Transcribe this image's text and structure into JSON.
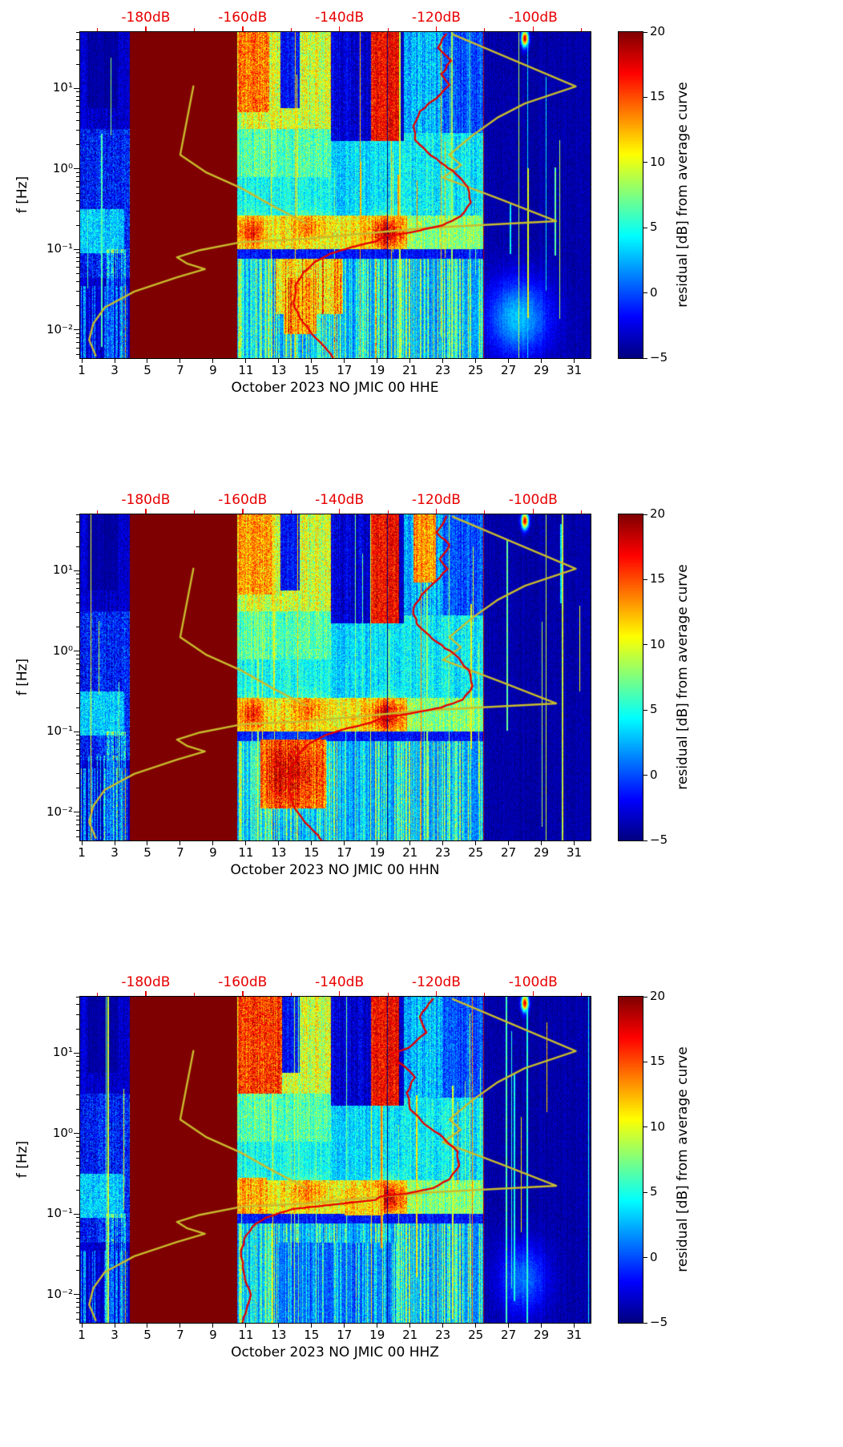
{
  "page": {
    "background": "#ffffff"
  },
  "chart_shared": {
    "clim": [
      -5,
      20
    ],
    "masked_interval_days": [
      3.95,
      10.45
    ],
    "x_axis": {
      "range_days": [
        0.9,
        32.0
      ],
      "ticks": [
        1,
        3,
        5,
        7,
        9,
        11,
        13,
        15,
        17,
        19,
        21,
        23,
        25,
        27,
        29,
        31
      ],
      "tick_labels": [
        "1",
        "3",
        "5",
        "7",
        "9",
        "11",
        "13",
        "15",
        "17",
        "19",
        "21",
        "23",
        "25",
        "27",
        "29",
        "31"
      ]
    },
    "y_axis": {
      "label": "f [Hz]",
      "log10_range": [
        -2.35,
        1.7
      ],
      "ticks": [
        10,
        1,
        0.1,
        0.01
      ],
      "tick_labels": [
        "10¹",
        "10⁰",
        "10⁻¹",
        "10⁻²"
      ]
    },
    "top_axis": {
      "color": "#e80000",
      "ticks_db": [
        -180,
        -160,
        -140,
        -120,
        -100
      ],
      "tick_labels": [
        "-180dB",
        "-160dB",
        "-140dB",
        "-120dB",
        "-100dB"
      ],
      "tick_days": [
        4.9,
        10.8,
        16.7,
        22.6,
        28.5
      ]
    },
    "colorbar": {
      "label": "residual [dB] from average curve",
      "range": [
        -5,
        20
      ],
      "colormap": "jet",
      "ticks": [
        20,
        15,
        10,
        5,
        0,
        -5
      ],
      "tick_labels": [
        "20",
        "15",
        "10",
        "5",
        "0",
        "−5"
      ]
    },
    "curves": {
      "yellow_color": "#c9bc2e",
      "red_color": "#e60000",
      "yellow_main_day_freq": [
        [
          23.6,
          47
        ],
        [
          31.1,
          10.6
        ],
        [
          28.0,
          6.5
        ],
        [
          26.3,
          4.3
        ],
        [
          24.8,
          2.6
        ],
        [
          23.4,
          1.5
        ],
        [
          24.1,
          1.12
        ],
        [
          23.0,
          0.78
        ],
        [
          26.5,
          0.42
        ],
        [
          29.9,
          0.225
        ],
        [
          22.0,
          0.185
        ],
        [
          14.6,
          0.135
        ],
        [
          10.8,
          0.124
        ],
        [
          8.2,
          0.098
        ],
        [
          6.8,
          0.08
        ],
        [
          7.4,
          0.067
        ],
        [
          8.5,
          0.057
        ],
        [
          6.8,
          0.045
        ],
        [
          4.2,
          0.03
        ],
        [
          2.4,
          0.019
        ],
        [
          1.7,
          0.012
        ],
        [
          1.45,
          0.0075
        ],
        [
          1.85,
          0.0048
        ]
      ],
      "yellow_left_day_freq": [
        [
          7.8,
          10.6
        ],
        [
          7.0,
          1.5
        ],
        [
          8.6,
          0.9
        ],
        [
          10.7,
          0.58
        ],
        [
          12.6,
          0.35
        ],
        [
          14.7,
          0.21
        ]
      ]
    },
    "heatmap_ops_pre": [
      {
        "t": "rect",
        "d": [
          0.9,
          32
        ],
        "l": [
          -2.35,
          1.7
        ],
        "v": -3.3,
        "n": 1.6,
        "cn": 0.8
      },
      {
        "t": "rect",
        "d": [
          0.9,
          3.95
        ],
        "l": [
          -1.35,
          0.5
        ],
        "v": -1.2,
        "n": 3.0,
        "cn": 1.2
      },
      {
        "t": "rect",
        "d": [
          0.9,
          3.6
        ],
        "l": [
          -1.05,
          -0.5
        ],
        "v": 3.2,
        "n": 2.6,
        "cn": 1.0
      },
      {
        "t": "rect",
        "d": [
          1.4,
          3.2
        ],
        "l": [
          0.75,
          1.7
        ],
        "v": -4.2,
        "n": 0.9,
        "cn": 0.6
      },
      {
        "t": "stripes",
        "d": [
          0.9,
          3.9
        ],
        "l": [
          -2.35,
          -1.45
        ],
        "amp": 8,
        "p": 0.3
      },
      {
        "t": "stripes",
        "d": [
          2.5,
          3.8
        ],
        "l": [
          -2.35,
          -1.0
        ],
        "amp": 9,
        "p": 0.45
      },
      {
        "t": "lines",
        "d": [
          1.0,
          3.8
        ],
        "count": 3,
        "v": [
          5,
          11
        ]
      },
      {
        "t": "rect",
        "d": [
          10.45,
          16.2
        ],
        "l": [
          0.5,
          1.7
        ],
        "v": 9.5,
        "n": 3.2,
        "cn": 2.2
      },
      {
        "t": "rect",
        "d": [
          10.45,
          16.2
        ],
        "l": [
          -0.1,
          0.5
        ],
        "v": 6.5,
        "n": 2.6,
        "cn": 1.8
      },
      {
        "t": "rect",
        "d": [
          10.45,
          16.2
        ],
        "l": [
          -0.58,
          -0.1
        ],
        "v": 4.6,
        "n": 2.2,
        "cn": 1.5
      },
      {
        "t": "rect",
        "d": [
          13.1,
          14.3
        ],
        "l": [
          0.75,
          1.7
        ],
        "v": -1.5,
        "n": 2.2,
        "cn": 1.0
      },
      {
        "t": "rect",
        "d": [
          16.2,
          18.6
        ],
        "l": [
          0.35,
          1.7
        ],
        "v": -2.8,
        "n": 2.0,
        "cn": 1.0
      },
      {
        "t": "rect",
        "d": [
          16.2,
          20.6
        ],
        "l": [
          -0.58,
          0.35
        ],
        "v": 3.8,
        "n": 2.2,
        "cn": 1.5
      },
      {
        "t": "rect",
        "d": [
          18.6,
          20.35
        ],
        "l": [
          0.35,
          1.7
        ],
        "v": 17,
        "n": 2.6,
        "cn": 1.2
      },
      {
        "t": "rect",
        "d": [
          20.6,
          23.0
        ],
        "l": [
          0.45,
          1.7
        ],
        "v": 2.5,
        "n": 2.6,
        "cn": 1.8
      },
      {
        "t": "rect",
        "d": [
          23.0,
          25.45
        ],
        "l": [
          0.45,
          1.7
        ],
        "v": 0.0,
        "n": 2.2,
        "cn": 1.4
      },
      {
        "t": "rect",
        "d": [
          20.6,
          25.45
        ],
        "l": [
          -0.58,
          0.45
        ],
        "v": 4.2,
        "n": 2.4,
        "cn": 1.5
      },
      {
        "t": "rect",
        "d": [
          10.45,
          25.45
        ],
        "l": [
          -1.0,
          -0.58
        ],
        "v": 10.5,
        "n": 3.0,
        "cn": 1.8
      },
      {
        "t": "rect",
        "d": [
          20.8,
          25.45
        ],
        "l": [
          -1.0,
          -0.58
        ],
        "v": 7.5,
        "n": 2.6,
        "cn": 1.8
      },
      {
        "t": "blob",
        "d": 11.4,
        "l": -0.78,
        "rd": 0.5,
        "rl": 0.13,
        "v": 6
      },
      {
        "t": "blob",
        "d": 19.6,
        "l": -0.8,
        "rd": 0.7,
        "rl": 0.14,
        "v": 8
      },
      {
        "t": "blob",
        "d": 14.9,
        "l": -0.72,
        "rd": 0.7,
        "rl": 0.12,
        "v": 3.5
      },
      {
        "t": "rect",
        "d": [
          10.45,
          25.45
        ],
        "l": [
          -1.12,
          -1.0
        ],
        "v": -1.5,
        "n": 1.8,
        "cn": 1.0
      },
      {
        "t": "rect",
        "d": [
          10.45,
          25.45
        ],
        "l": [
          -2.35,
          -1.12
        ],
        "v": 1.8,
        "n": 1.8,
        "cn": 1.2
      },
      {
        "t": "stripes",
        "d": [
          10.45,
          25.45
        ],
        "l": [
          -2.35,
          -1.12
        ],
        "amp": 9,
        "p": 0.4
      },
      {
        "t": "lines",
        "d": [
          10.6,
          25.3
        ],
        "count": 18,
        "v": [
          6,
          14
        ]
      },
      {
        "t": "rect",
        "d": [
          25.5,
          32.0
        ],
        "l": [
          -2.35,
          1.7
        ],
        "v": -4.0,
        "n": 1.0,
        "cn": 0.5
      },
      {
        "t": "lines",
        "d": [
          25.7,
          31.9
        ],
        "count": 7,
        "v": [
          3,
          12
        ]
      }
    ],
    "heatmap_ops_post": [
      {
        "t": "vline",
        "day": 19.62,
        "l": [
          -2.35,
          1.7
        ],
        "v": -5,
        "w": 1
      },
      {
        "t": "vline",
        "day": 25.5,
        "l": [
          -2.35,
          1.7
        ],
        "v": 19,
        "w": 1
      },
      {
        "t": "blob",
        "d": 28.0,
        "l": 1.62,
        "rd": 0.15,
        "rl": 0.07,
        "v": 22
      },
      {
        "t": "rect",
        "d": [
          3.95,
          10.45
        ],
        "l": [
          -2.35,
          1.7
        ],
        "v": 26,
        "n": 0,
        "cn": 0
      }
    ]
  },
  "chart_data": [
    {
      "type": "heatmap",
      "channel": "HHE",
      "xlabel": "October 2023 NO JMIC 00 HHE",
      "seed": 101,
      "red_curve_day_freq": [
        [
          23.2,
          47
        ],
        [
          22.7,
          32
        ],
        [
          23.5,
          22
        ],
        [
          22.9,
          15
        ],
        [
          23.4,
          11
        ],
        [
          22.6,
          7.5
        ],
        [
          21.6,
          5.2
        ],
        [
          21.2,
          3.4
        ],
        [
          21.3,
          2.3
        ],
        [
          22.3,
          1.45
        ],
        [
          23.6,
          0.95
        ],
        [
          24.5,
          0.6
        ],
        [
          24.7,
          0.38
        ],
        [
          24.1,
          0.26
        ],
        [
          23.0,
          0.2
        ],
        [
          21.2,
          0.165
        ],
        [
          19.6,
          0.148
        ],
        [
          18.9,
          0.125
        ],
        [
          17.3,
          0.105
        ],
        [
          16.1,
          0.088
        ],
        [
          15.2,
          0.07
        ],
        [
          14.5,
          0.052
        ],
        [
          14.0,
          0.035
        ],
        [
          13.9,
          0.022
        ],
        [
          14.3,
          0.014
        ],
        [
          15.1,
          0.0085
        ],
        [
          16.0,
          0.0055
        ],
        [
          16.3,
          0.0045
        ]
      ],
      "heatmap_ops_extra": [
        {
          "t": "rect",
          "d": [
            10.5,
            12.4
          ],
          "l": [
            0.7,
            1.7
          ],
          "v": 14,
          "n": 3.2,
          "cn": 1.5
        },
        {
          "t": "rect",
          "d": [
            12.8,
            16.9
          ],
          "l": [
            -1.8,
            -1.12
          ],
          "v": 10.5,
          "n": 3.2,
          "cn": 2.0
        },
        {
          "t": "rect",
          "d": [
            13.3,
            15.3
          ],
          "l": [
            -2.05,
            -1.35
          ],
          "v": 12.5,
          "n": 3.0,
          "cn": 2.0
        },
        {
          "t": "blob",
          "d": 27.6,
          "l": -1.85,
          "rd": 1.3,
          "rl": 0.33,
          "v": 7
        },
        {
          "t": "stripes",
          "d": [
            10.5,
            19.5
          ],
          "l": [
            -2.35,
            -1.12
          ],
          "amp": 6,
          "p": 0.3
        }
      ]
    },
    {
      "type": "heatmap",
      "channel": "HHN",
      "xlabel": "October 2023 NO JMIC 00 HHN",
      "seed": 202,
      "red_curve_day_freq": [
        [
          23.2,
          47
        ],
        [
          22.6,
          30
        ],
        [
          23.4,
          21
        ],
        [
          22.8,
          14
        ],
        [
          23.3,
          10.5
        ],
        [
          22.5,
          7.2
        ],
        [
          21.7,
          5.0
        ],
        [
          21.2,
          3.3
        ],
        [
          21.4,
          2.2
        ],
        [
          22.4,
          1.4
        ],
        [
          23.7,
          0.92
        ],
        [
          24.6,
          0.58
        ],
        [
          24.8,
          0.37
        ],
        [
          24.2,
          0.25
        ],
        [
          22.9,
          0.2
        ],
        [
          21.0,
          0.168
        ],
        [
          19.4,
          0.15
        ],
        [
          18.5,
          0.128
        ],
        [
          17.0,
          0.108
        ],
        [
          15.8,
          0.09
        ],
        [
          14.8,
          0.07
        ],
        [
          14.1,
          0.05
        ],
        [
          13.7,
          0.032
        ],
        [
          13.6,
          0.02
        ],
        [
          13.9,
          0.012
        ],
        [
          14.6,
          0.0075
        ],
        [
          15.4,
          0.0052
        ],
        [
          15.6,
          0.0045
        ]
      ],
      "heatmap_ops_extra": [
        {
          "t": "rect",
          "d": [
            10.5,
            12.6
          ],
          "l": [
            0.7,
            1.7
          ],
          "v": 13,
          "n": 3.2,
          "cn": 1.5
        },
        {
          "t": "rect",
          "d": [
            21.2,
            22.6
          ],
          "l": [
            0.85,
            1.7
          ],
          "v": 13,
          "n": 3.0,
          "cn": 1.5
        },
        {
          "t": "rect",
          "d": [
            11.9,
            15.9
          ],
          "l": [
            -1.95,
            -1.1
          ],
          "v": 13.5,
          "n": 3.2,
          "cn": 2.2
        },
        {
          "t": "blob",
          "d": 13.6,
          "l": -1.5,
          "rd": 1.3,
          "rl": 0.3,
          "v": 4
        },
        {
          "t": "stripes",
          "d": [
            0.9,
            3.9
          ],
          "l": [
            -2.35,
            -1.3
          ],
          "amp": 9,
          "p": 0.35
        }
      ]
    },
    {
      "type": "heatmap",
      "channel": "HHZ",
      "xlabel": "October 2023 NO JMIC 00 HHZ",
      "seed": 303,
      "red_curve_day_freq": [
        [
          22.4,
          47
        ],
        [
          21.6,
          28
        ],
        [
          22.0,
          18
        ],
        [
          21.0,
          12
        ],
        [
          19.8,
          9.5
        ],
        [
          20.6,
          7
        ],
        [
          21.3,
          5
        ],
        [
          20.8,
          3.2
        ],
        [
          21.0,
          2.0
        ],
        [
          21.9,
          1.3
        ],
        [
          23.0,
          0.9
        ],
        [
          23.9,
          0.6
        ],
        [
          24.0,
          0.4
        ],
        [
          23.4,
          0.27
        ],
        [
          22.4,
          0.21
        ],
        [
          20.8,
          0.18
        ],
        [
          19.2,
          0.165
        ],
        [
          18.9,
          0.15
        ],
        [
          13.8,
          0.115
        ],
        [
          12.2,
          0.09
        ],
        [
          11.4,
          0.07
        ],
        [
          10.9,
          0.05
        ],
        [
          10.7,
          0.03
        ],
        [
          10.9,
          0.018
        ],
        [
          11.3,
          0.01
        ],
        [
          11.0,
          0.006
        ],
        [
          10.8,
          0.0045
        ]
      ],
      "heatmap_ops_extra": [
        {
          "t": "rect",
          "d": [
            10.5,
            13.2
          ],
          "l": [
            0.5,
            1.7
          ],
          "v": 15.5,
          "n": 3.2,
          "cn": 1.5
        },
        {
          "t": "rect",
          "d": [
            10.5,
            12.3
          ],
          "l": [
            -1.0,
            -0.55
          ],
          "v": 12.5,
          "n": 3.0,
          "cn": 1.8
        },
        {
          "t": "rect",
          "d": [
            17.0,
            19.4
          ],
          "l": [
            -1.02,
            -0.68
          ],
          "v": 11.5,
          "n": 3.0,
          "cn": 1.8
        },
        {
          "t": "rect",
          "d": [
            13.0,
            20.2
          ],
          "l": [
            -2.35,
            -1.35
          ],
          "v": 0.5,
          "n": 1.8,
          "cn": 1.2
        },
        {
          "t": "stripes",
          "d": [
            13.0,
            20.2
          ],
          "l": [
            -2.35,
            -1.35
          ],
          "amp": 7,
          "p": 0.3
        },
        {
          "t": "blob",
          "d": 27.9,
          "l": -1.8,
          "rd": 1.0,
          "rl": 0.3,
          "v": 5
        }
      ]
    }
  ]
}
